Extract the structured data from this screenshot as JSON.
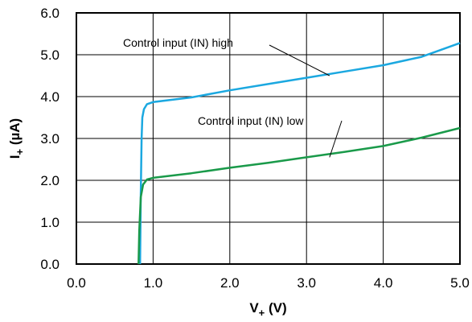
{
  "chart_data": {
    "type": "line",
    "title": "",
    "xlabel": {
      "main": "V",
      "sub": "+",
      "unit": " (V)"
    },
    "ylabel": {
      "main": "I",
      "sub": "+",
      "unit": " (µA)"
    },
    "xlim": [
      0,
      5
    ],
    "ylim": [
      0,
      6
    ],
    "x_ticks": [
      "0.0",
      "1.0",
      "2.0",
      "3.0",
      "4.0",
      "5.0"
    ],
    "y_ticks": [
      "0.0",
      "1.0",
      "2.0",
      "3.0",
      "4.0",
      "5.0",
      "6.0"
    ],
    "grid": true,
    "legend": "none",
    "series": [
      {
        "name": "Control input (IN) high",
        "color": "#1ba8e0",
        "points": [
          [
            0.83,
            0.0
          ],
          [
            0.84,
            1.7
          ],
          [
            0.85,
            3.0
          ],
          [
            0.86,
            3.5
          ],
          [
            0.88,
            3.7
          ],
          [
            0.92,
            3.82
          ],
          [
            1.0,
            3.87
          ],
          [
            1.5,
            3.98
          ],
          [
            2.0,
            4.15
          ],
          [
            2.5,
            4.3
          ],
          [
            3.0,
            4.45
          ],
          [
            3.5,
            4.6
          ],
          [
            4.0,
            4.75
          ],
          [
            4.5,
            4.95
          ],
          [
            5.0,
            5.28
          ]
        ]
      },
      {
        "name": "Control input (IN) low",
        "color": "#1a9a4a",
        "points": [
          [
            0.81,
            0.0
          ],
          [
            0.82,
            0.8
          ],
          [
            0.84,
            1.6
          ],
          [
            0.87,
            1.9
          ],
          [
            0.92,
            2.02
          ],
          [
            1.0,
            2.06
          ],
          [
            1.5,
            2.17
          ],
          [
            2.0,
            2.3
          ],
          [
            2.5,
            2.42
          ],
          [
            3.0,
            2.55
          ],
          [
            3.5,
            2.68
          ],
          [
            4.0,
            2.82
          ],
          [
            4.5,
            3.02
          ],
          [
            5.0,
            3.25
          ]
        ]
      }
    ],
    "annotations": [
      {
        "series": 0,
        "text": "Control input (IN) high",
        "at": [
          3.3,
          4.5
        ]
      },
      {
        "series": 1,
        "text": "Control input (IN) low",
        "at": [
          3.3,
          2.55
        ]
      }
    ]
  }
}
